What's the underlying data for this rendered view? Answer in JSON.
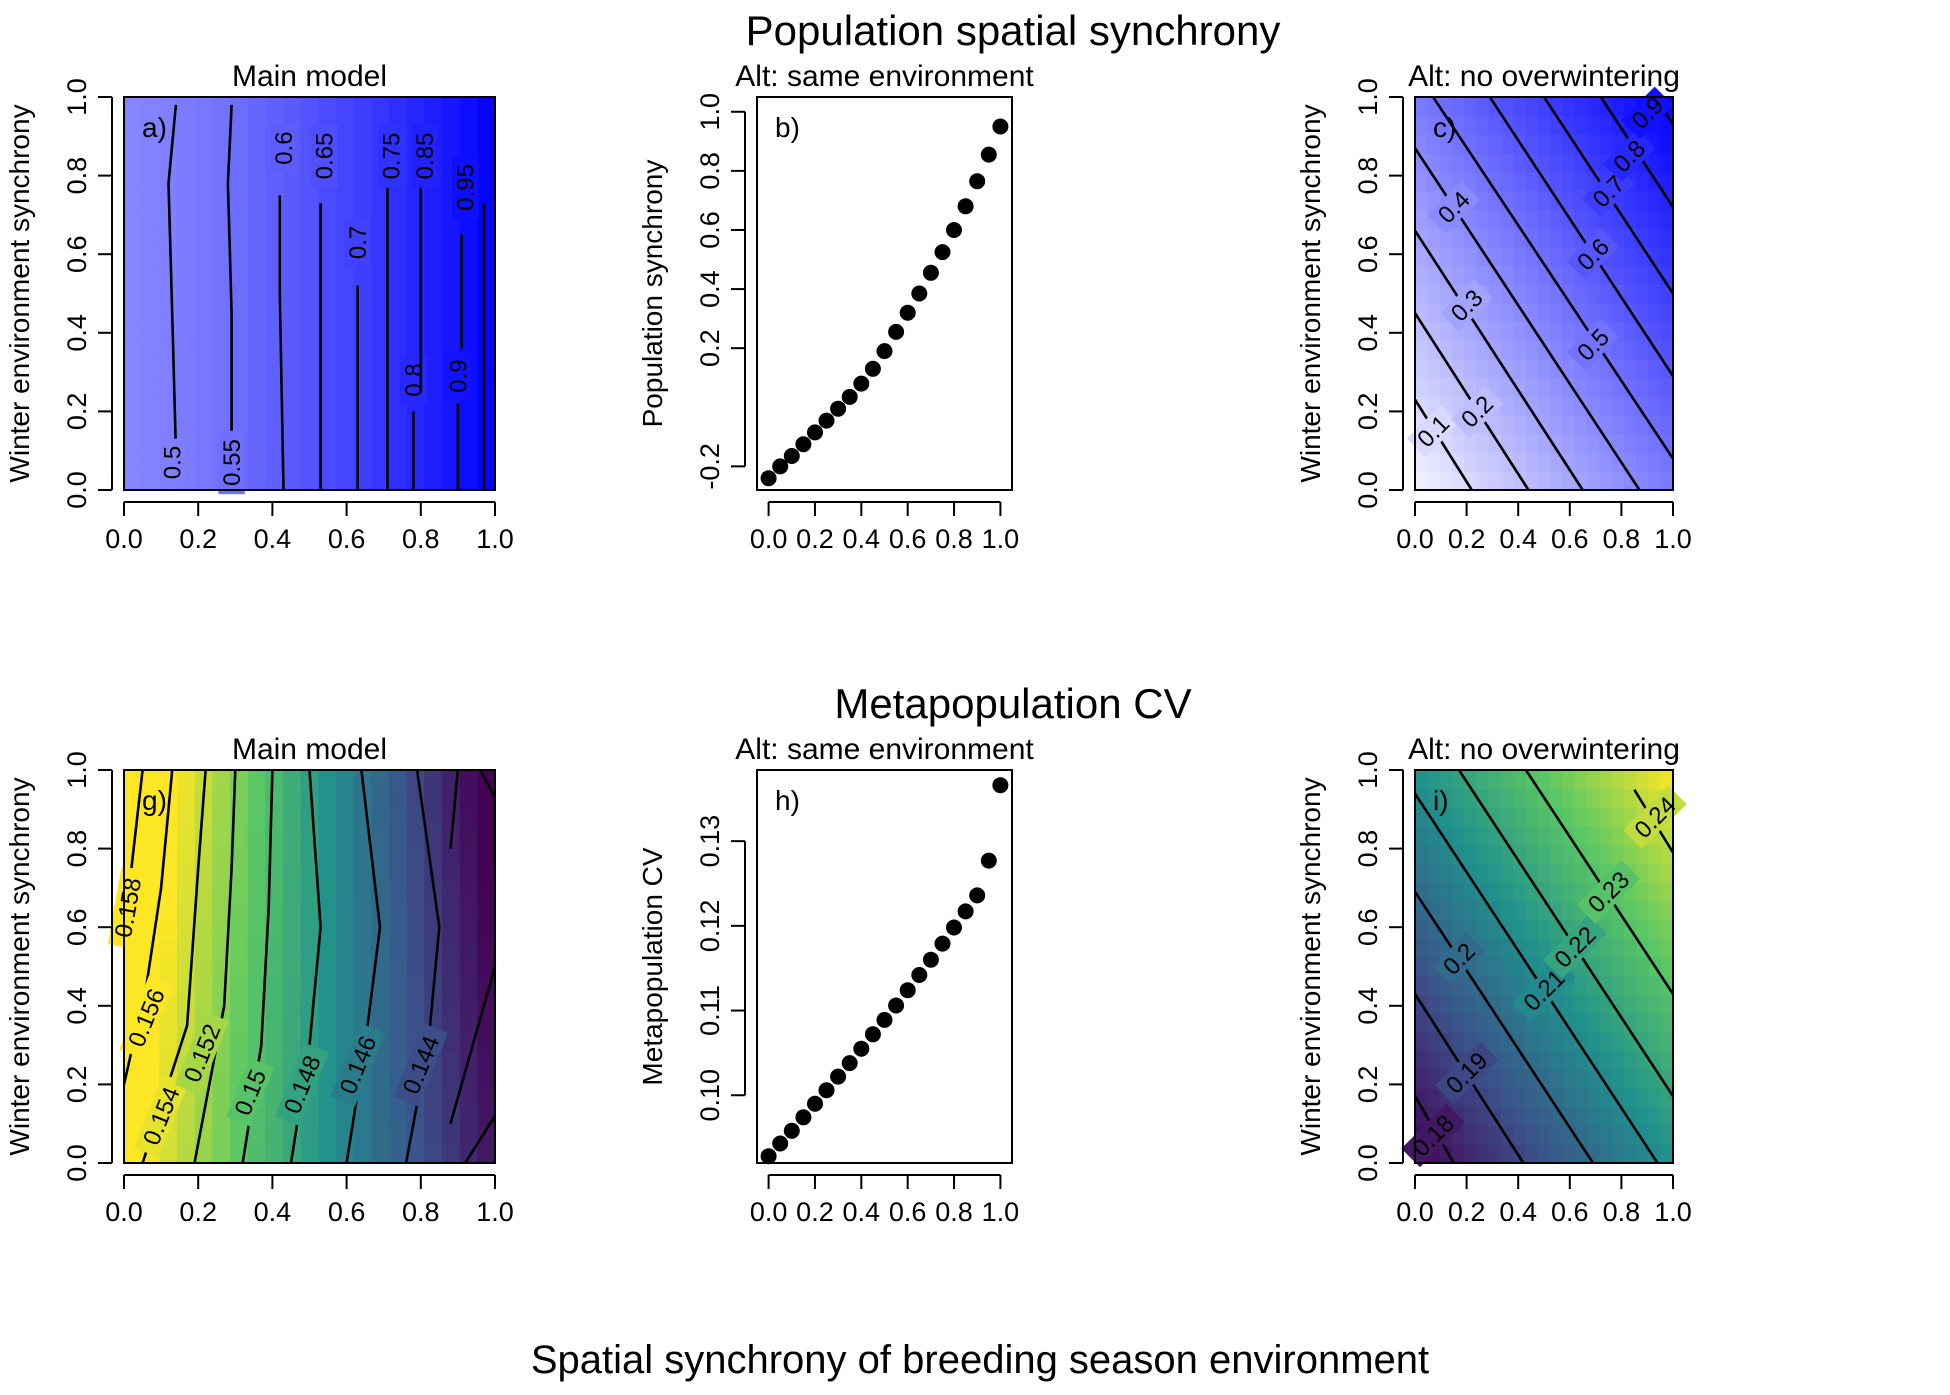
{
  "figure": {
    "title_top": "Population spatial synchrony",
    "title_bottom": "Metapopulation CV",
    "xlabel": "Spatial synchrony of breeding season environment"
  },
  "colors": {
    "blue_dark": "#0000ff",
    "blue_light": "#f4f4ff",
    "viridis": [
      "#440154",
      "#3b528b",
      "#21918c",
      "#5ec962",
      "#fde725"
    ],
    "contour": "#000000",
    "points": "#000000"
  },
  "chart_data": [
    {
      "id": "a",
      "type": "heatmap",
      "title": "Main model",
      "panel_label": "a)",
      "xlabel": "",
      "ylabel": "Winter environment synchrony",
      "xlim": [
        0,
        1
      ],
      "ylim": [
        0,
        1
      ],
      "palette": "blue",
      "xticks": [
        "0.0",
        "0.2",
        "0.4",
        "0.6",
        "0.8",
        "1.0"
      ],
      "yticks": [
        "0.0",
        "0.2",
        "0.4",
        "0.6",
        "0.8",
        "1.0"
      ],
      "value_range": [
        0.44,
        1.0
      ],
      "contours": [
        {
          "level": "0.5",
          "points": [
            [
              0.14,
              0.1
            ],
            [
              0.13,
              0.45
            ],
            [
              0.12,
              0.78
            ],
            [
              0.14,
              0.98
            ]
          ],
          "label_at": [
            0.13,
            0.07
          ],
          "label_angle": 90
        },
        {
          "level": "0.55",
          "points": [
            [
              0.29,
              0.1
            ],
            [
              0.29,
              0.45
            ],
            [
              0.28,
              0.78
            ],
            [
              0.29,
              0.98
            ]
          ],
          "label_at": [
            0.29,
            0.07
          ],
          "label_angle": 90
        },
        {
          "level": "0.6",
          "points": [
            [
              0.43,
              0.0
            ],
            [
              0.42,
              0.5
            ],
            [
              0.42,
              0.75
            ]
          ],
          "label_at": [
            0.43,
            0.87
          ],
          "label_angle": 90
        },
        {
          "level": "0.65",
          "points": [
            [
              0.53,
              0.0
            ],
            [
              0.53,
              0.5
            ],
            [
              0.53,
              0.73
            ]
          ],
          "label_at": [
            0.54,
            0.85
          ],
          "label_angle": 90
        },
        {
          "level": "0.7",
          "points": [
            [
              0.63,
              0.0
            ],
            [
              0.63,
              0.52
            ]
          ],
          "label_at": [
            0.63,
            0.63
          ],
          "label_angle": 90
        },
        {
          "level": "0.75",
          "points": [
            [
              0.71,
              0.0
            ],
            [
              0.71,
              0.8
            ]
          ],
          "label_at": [
            0.72,
            0.85
          ],
          "label_angle": 90
        },
        {
          "level": "0.8",
          "points": [
            [
              0.78,
              0.0
            ],
            [
              0.78,
              0.2
            ]
          ],
          "label_at": [
            0.78,
            0.28
          ],
          "label_angle": 90
        },
        {
          "level": "0.85",
          "points": [
            [
              0.8,
              0.25
            ],
            [
              0.8,
              0.77
            ]
          ],
          "label_at": [
            0.81,
            0.85
          ],
          "label_angle": 90
        },
        {
          "level": "0.9",
          "points": [
            [
              0.9,
              0.0
            ],
            [
              0.9,
              0.22
            ]
          ],
          "label_at": [
            0.9,
            0.29
          ],
          "label_angle": 90
        },
        {
          "level": "0.95",
          "points": [
            [
              0.91,
              0.36
            ],
            [
              0.91,
              0.65
            ]
          ],
          "label_at": [
            0.92,
            0.77
          ],
          "label_angle": 90
        },
        {
          "level": "",
          "points": [
            [
              0.97,
              0.0
            ],
            [
              0.97,
              0.73
            ]
          ]
        }
      ]
    },
    {
      "id": "b",
      "type": "scatter",
      "title": "Alt: same environment",
      "panel_label": "b)",
      "xlabel": "",
      "ylabel": "Population synchrony",
      "xlim": [
        -0.05,
        1.05
      ],
      "ylim": [
        -0.28,
        1.05
      ],
      "xticks": [
        "0.0",
        "0.2",
        "0.4",
        "0.6",
        "0.8",
        "1.0"
      ],
      "yticks": [
        "-0.2",
        "0.2",
        "0.4",
        "0.6",
        "0.8",
        "1.0"
      ],
      "x": [
        0.0,
        0.05,
        0.1,
        0.15,
        0.2,
        0.25,
        0.3,
        0.35,
        0.4,
        0.45,
        0.5,
        0.55,
        0.6,
        0.65,
        0.7,
        0.75,
        0.8,
        0.85,
        0.9,
        0.95,
        1.0
      ],
      "y": [
        -0.24,
        -0.2,
        -0.165,
        -0.125,
        -0.085,
        -0.045,
        -0.005,
        0.035,
        0.08,
        0.13,
        0.19,
        0.255,
        0.32,
        0.385,
        0.455,
        0.525,
        0.6,
        0.68,
        0.765,
        0.855,
        0.95
      ]
    },
    {
      "id": "c",
      "type": "heatmap",
      "title": "Alt: no overwintering",
      "panel_label": "c)",
      "xlabel": "",
      "ylabel": "Winter environment synchrony",
      "xlim": [
        0,
        1
      ],
      "ylim": [
        0,
        1
      ],
      "palette": "blue",
      "xticks": [
        "0.0",
        "0.2",
        "0.4",
        "0.6",
        "0.8",
        "1.0"
      ],
      "yticks": [
        "0.0",
        "0.2",
        "0.4",
        "0.6",
        "0.8",
        "1.0"
      ],
      "value_range": [
        0.0,
        1.0
      ],
      "contours": [
        {
          "level": "0.1",
          "points": [
            [
              0.0,
              0.23
            ],
            [
              0.22,
              0.0
            ]
          ],
          "label_at": [
            0.07,
            0.15
          ],
          "label_angle": 45
        },
        {
          "level": "0.2",
          "points": [
            [
              0.0,
              0.45
            ],
            [
              0.44,
              0.0
            ]
          ],
          "label_at": [
            0.24,
            0.2
          ],
          "label_angle": 45
        },
        {
          "level": "0.3",
          "points": [
            [
              0.0,
              0.66
            ],
            [
              0.65,
              0.0
            ]
          ],
          "label_at": [
            0.2,
            0.47
          ],
          "label_angle": 45
        },
        {
          "level": "0.4",
          "points": [
            [
              0.0,
              0.87
            ],
            [
              0.87,
              0.0
            ]
          ],
          "label_at": [
            0.15,
            0.72
          ],
          "label_angle": 45
        },
        {
          "level": "0.5",
          "points": [
            [
              0.07,
              1.0
            ],
            [
              1.0,
              0.08
            ]
          ],
          "label_at": [
            0.69,
            0.37
          ],
          "label_angle": 45
        },
        {
          "level": "0.6",
          "points": [
            [
              0.29,
              1.0
            ],
            [
              1.0,
              0.29
            ]
          ],
          "label_at": [
            0.69,
            0.6
          ],
          "label_angle": 45
        },
        {
          "level": "0.7",
          "points": [
            [
              0.5,
              1.0
            ],
            [
              1.0,
              0.5
            ]
          ],
          "label_at": [
            0.75,
            0.76
          ],
          "label_angle": 45
        },
        {
          "level": "0.8",
          "points": [
            [
              0.72,
              1.0
            ],
            [
              1.0,
              0.72
            ]
          ],
          "label_at": [
            0.83,
            0.85
          ],
          "label_angle": 45
        },
        {
          "level": "0.9",
          "points": [
            [
              0.93,
              1.0
            ],
            [
              1.0,
              0.93
            ]
          ],
          "label_at": [
            0.9,
            0.96
          ],
          "label_angle": 45
        }
      ]
    },
    {
      "id": "g",
      "type": "heatmap",
      "title": "Main model",
      "panel_label": "g)",
      "xlabel": "",
      "ylabel": "Winter environment synchrony",
      "xlim": [
        0,
        1
      ],
      "ylim": [
        0,
        1
      ],
      "palette": "viridis",
      "xticks": [
        "0.0",
        "0.2",
        "0.4",
        "0.6",
        "0.8",
        "1.0"
      ],
      "yticks": [
        "0.0",
        "0.2",
        "0.4",
        "0.6",
        "0.8",
        "1.0"
      ],
      "value_range": [
        0.142,
        0.16
      ],
      "contours": [
        {
          "level": "0.158",
          "points": [
            [
              0.0,
              0.55
            ],
            [
              0.02,
              0.75
            ],
            [
              0.05,
              1.0
            ]
          ],
          "label_at": [
            0.01,
            0.65
          ],
          "label_angle": 80
        },
        {
          "level": "0.156",
          "points": [
            [
              0.0,
              0.2
            ],
            [
              0.06,
              0.45
            ],
            [
              0.1,
              0.7
            ],
            [
              0.13,
              1.0
            ]
          ],
          "label_at": [
            0.06,
            0.37
          ],
          "label_angle": 68
        },
        {
          "level": "0.154",
          "points": [
            [
              0.05,
              0.0
            ],
            [
              0.17,
              0.35
            ],
            [
              0.2,
              0.75
            ],
            [
              0.22,
              1.0
            ]
          ],
          "label_at": [
            0.1,
            0.12
          ],
          "label_angle": 68
        },
        {
          "level": "0.152",
          "points": [
            [
              0.19,
              0.0
            ],
            [
              0.27,
              0.4
            ],
            [
              0.29,
              0.75
            ],
            [
              0.3,
              1.0
            ]
          ],
          "label_at": [
            0.21,
            0.28
          ],
          "label_angle": 68
        },
        {
          "level": "0.15",
          "points": [
            [
              0.32,
              0.0
            ],
            [
              0.37,
              0.3
            ],
            [
              0.39,
              0.65
            ],
            [
              0.4,
              1.0
            ]
          ],
          "label_at": [
            0.34,
            0.18
          ],
          "label_angle": 68
        },
        {
          "level": "0.148",
          "points": [
            [
              0.45,
              0.0
            ],
            [
              0.5,
              0.3
            ],
            [
              0.53,
              0.6
            ],
            [
              0.5,
              1.0
            ]
          ],
          "label_at": [
            0.48,
            0.2
          ],
          "label_angle": 68
        },
        {
          "level": "0.146",
          "points": [
            [
              0.6,
              0.0
            ],
            [
              0.65,
              0.3
            ],
            [
              0.69,
              0.6
            ],
            [
              0.64,
              1.0
            ]
          ],
          "label_at": [
            0.63,
            0.25
          ],
          "label_angle": 68
        },
        {
          "level": "0.144",
          "points": [
            [
              0.76,
              0.0
            ],
            [
              0.82,
              0.3
            ],
            [
              0.85,
              0.6
            ],
            [
              0.79,
              1.0
            ]
          ],
          "label_at": [
            0.8,
            0.25
          ],
          "label_angle": 68
        },
        {
          "level": "",
          "points": [
            [
              0.88,
              0.1
            ],
            [
              1.0,
              0.5
            ]
          ]
        },
        {
          "level": "",
          "points": [
            [
              0.92,
              0.0
            ],
            [
              1.0,
              0.12
            ]
          ]
        },
        {
          "level": "",
          "points": [
            [
              0.88,
              0.8
            ],
            [
              0.9,
              1.0
            ]
          ]
        },
        {
          "level": "",
          "points": [
            [
              0.96,
              1.0
            ],
            [
              1.0,
              0.93
            ]
          ]
        }
      ]
    },
    {
      "id": "h",
      "type": "scatter",
      "title": "Alt: same environment",
      "panel_label": "h)",
      "xlabel": "",
      "ylabel": "Metapopulation CV",
      "xlim": [
        -0.05,
        1.05
      ],
      "ylim": [
        0.092,
        0.1384
      ],
      "xticks": [
        "0.0",
        "0.2",
        "0.4",
        "0.6",
        "0.8",
        "1.0"
      ],
      "yticks": [
        "0.10",
        "0.11",
        "0.12",
        "0.13"
      ],
      "x": [
        0.0,
        0.05,
        0.1,
        0.15,
        0.2,
        0.25,
        0.3,
        0.35,
        0.4,
        0.45,
        0.5,
        0.55,
        0.6,
        0.65,
        0.7,
        0.75,
        0.8,
        0.85,
        0.9,
        0.95,
        1.0
      ],
      "y": [
        0.0928,
        0.0943,
        0.0958,
        0.0974,
        0.099,
        0.1006,
        0.1022,
        0.1038,
        0.1055,
        0.1072,
        0.1089,
        0.1106,
        0.1124,
        0.1142,
        0.116,
        0.1179,
        0.1198,
        0.1217,
        0.1236,
        0.1277,
        0.1366
      ]
    },
    {
      "id": "i",
      "type": "heatmap",
      "title": "Alt: no overwintering",
      "panel_label": "i)",
      "xlabel": "",
      "ylabel": "Winter environment synchrony",
      "xlim": [
        0,
        1
      ],
      "ylim": [
        0,
        1
      ],
      "palette": "viridis",
      "xticks": [
        "0.0",
        "0.2",
        "0.4",
        "0.6",
        "0.8",
        "1.0"
      ],
      "yticks": [
        "0.0",
        "0.2",
        "0.4",
        "0.6",
        "0.8",
        "1.0"
      ],
      "value_range": [
        0.17,
        0.25
      ],
      "contours": [
        {
          "level": "0.18",
          "points": [
            [
              0.0,
              0.17
            ],
            [
              0.15,
              0.0
            ]
          ],
          "label_at": [
            0.07,
            0.07
          ],
          "label_angle": 45
        },
        {
          "level": "0.19",
          "points": [
            [
              0.0,
              0.43
            ],
            [
              0.42,
              0.0
            ]
          ],
          "label_at": [
            0.2,
            0.23
          ],
          "label_angle": 45
        },
        {
          "level": "0.2",
          "points": [
            [
              0.0,
              0.69
            ],
            [
              0.69,
              0.0
            ]
          ],
          "label_at": [
            0.17,
            0.52
          ],
          "label_angle": 45
        },
        {
          "level": "0.21",
          "points": [
            [
              0.0,
              0.94
            ],
            [
              0.94,
              0.0
            ]
          ],
          "label_at": [
            0.5,
            0.44
          ],
          "label_angle": 45
        },
        {
          "level": "0.22",
          "points": [
            [
              0.17,
              1.0
            ],
            [
              1.0,
              0.17
            ]
          ],
          "label_at": [
            0.62,
            0.55
          ],
          "label_angle": 45
        },
        {
          "level": "0.23",
          "points": [
            [
              0.43,
              1.0
            ],
            [
              1.0,
              0.43
            ]
          ],
          "label_at": [
            0.75,
            0.69
          ],
          "label_angle": 45
        },
        {
          "level": "0.24",
          "points": [
            [
              0.85,
              0.95
            ],
            [
              1.0,
              0.79
            ]
          ],
          "label_at": [
            0.93,
            0.88
          ],
          "label_angle": 45
        }
      ]
    }
  ]
}
